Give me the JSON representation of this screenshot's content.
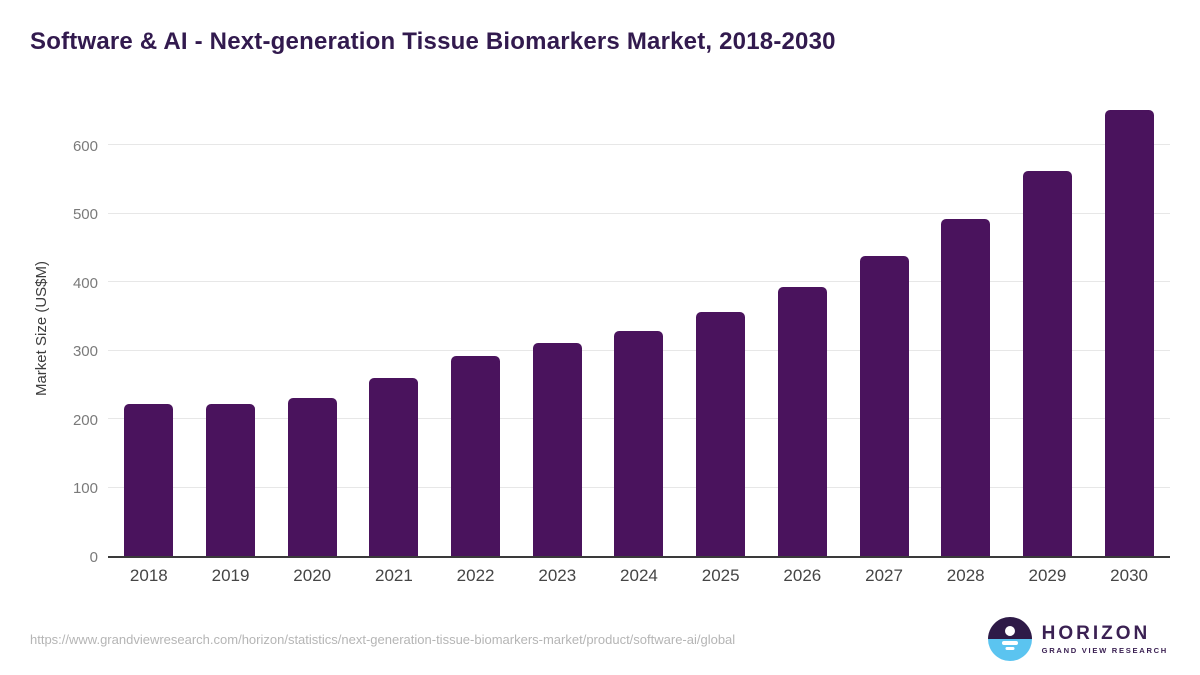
{
  "chart_data": {
    "type": "bar",
    "title": "Software & AI - Next-generation Tissue Biomarkers Market, 2018-2030",
    "xlabel": "",
    "ylabel": "Market Size (US$M)",
    "categories": [
      "2018",
      "2019",
      "2020",
      "2021",
      "2022",
      "2023",
      "2024",
      "2025",
      "2026",
      "2027",
      "2028",
      "2029",
      "2030"
    ],
    "values": [
      222,
      222,
      231,
      260,
      292,
      310,
      328,
      356,
      392,
      437,
      491,
      561,
      651
    ],
    "yticks": [
      0,
      100,
      200,
      300,
      400,
      500,
      600
    ],
    "ylim": [
      0,
      668
    ],
    "grid": "horizontal",
    "legend": "none",
    "bar_color": "#4a135d"
  },
  "footer": {
    "source_url": "https://www.grandviewresearch.com/horizon/statistics/next-generation-tissue-biomarkers-market/product/software-ai/global",
    "logo": {
      "brand": "HORIZON",
      "sub_brand": "GRAND VIEW RESEARCH"
    }
  },
  "colors": {
    "title": "#321a4e",
    "bar": "#4a135d",
    "gridline": "#e7e7e7",
    "axis_line": "#3a3a3a",
    "y_tick_label": "#7a7a7a",
    "x_tick_label": "#454545",
    "source_url": "#b5b5b5",
    "logo_purple": "#2e1a47",
    "logo_blue": "#5bc4f0"
  }
}
